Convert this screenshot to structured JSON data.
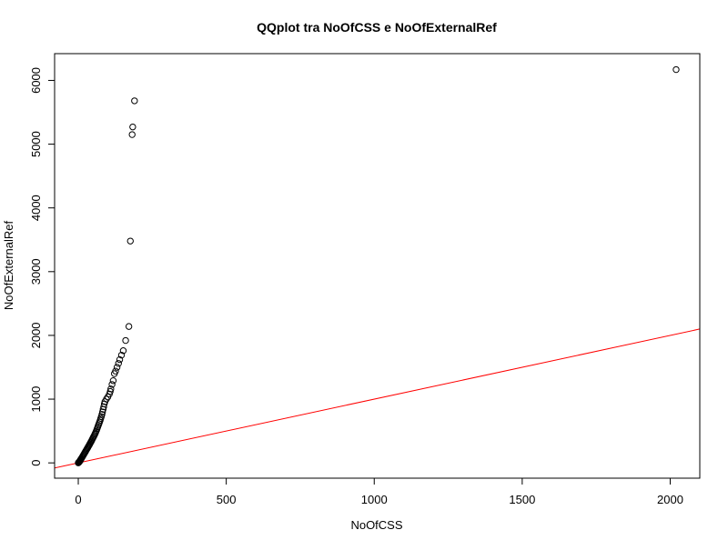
{
  "chart_data": {
    "type": "scatter",
    "title": "QQplot tra NoOfCSS e NoOfExternalRef",
    "xlabel": "NoOfCSS",
    "ylabel": "NoOfExternalRef",
    "xlim": [
      -80,
      2100
    ],
    "ylim": [
      -240,
      6420
    ],
    "x_ticks": [
      0,
      500,
      1000,
      1500,
      2000
    ],
    "y_ticks": [
      0,
      1000,
      2000,
      3000,
      4000,
      5000,
      6000
    ],
    "grid": false,
    "legend": "none",
    "marker": "open-circle",
    "reference_line": {
      "slope": 1,
      "intercept": 0,
      "color": "#ff0000"
    },
    "points": [
      [
        0,
        0
      ],
      [
        1,
        4
      ],
      [
        2,
        9
      ],
      [
        3,
        14
      ],
      [
        4,
        20
      ],
      [
        5,
        27
      ],
      [
        6,
        34
      ],
      [
        7,
        42
      ],
      [
        8,
        50
      ],
      [
        9,
        58
      ],
      [
        10,
        67
      ],
      [
        12,
        80
      ],
      [
        14,
        96
      ],
      [
        16,
        112
      ],
      [
        18,
        128
      ],
      [
        20,
        144
      ],
      [
        22,
        160
      ],
      [
        24,
        176
      ],
      [
        26,
        192
      ],
      [
        28,
        208
      ],
      [
        30,
        224
      ],
      [
        32,
        240
      ],
      [
        34,
        256
      ],
      [
        36,
        272
      ],
      [
        38,
        288
      ],
      [
        40,
        305
      ],
      [
        42,
        322
      ],
      [
        44,
        340
      ],
      [
        46,
        358
      ],
      [
        48,
        376
      ],
      [
        50,
        394
      ],
      [
        52,
        412
      ],
      [
        54,
        430
      ],
      [
        56,
        450
      ],
      [
        58,
        470
      ],
      [
        60,
        492
      ],
      [
        62,
        515
      ],
      [
        64,
        540
      ],
      [
        66,
        565
      ],
      [
        68,
        590
      ],
      [
        70,
        615
      ],
      [
        72,
        640
      ],
      [
        74,
        668
      ],
      [
        76,
        697
      ],
      [
        78,
        726
      ],
      [
        80,
        760
      ],
      [
        82,
        800
      ],
      [
        84,
        840
      ],
      [
        86,
        880
      ],
      [
        88,
        925
      ],
      [
        90,
        960
      ],
      [
        95,
        1000
      ],
      [
        100,
        1035
      ],
      [
        105,
        1080
      ],
      [
        108,
        1120
      ],
      [
        110,
        1160
      ],
      [
        114,
        1230
      ],
      [
        118,
        1290
      ],
      [
        122,
        1400
      ],
      [
        126,
        1440
      ],
      [
        131,
        1500
      ],
      [
        136,
        1560
      ],
      [
        140,
        1620
      ],
      [
        146,
        1690
      ],
      [
        152,
        1760
      ],
      [
        160,
        1920
      ],
      [
        171,
        2140
      ],
      [
        176,
        3480
      ],
      [
        182,
        5150
      ],
      [
        184,
        5270
      ],
      [
        190,
        5680
      ],
      [
        2020,
        6170
      ]
    ]
  }
}
